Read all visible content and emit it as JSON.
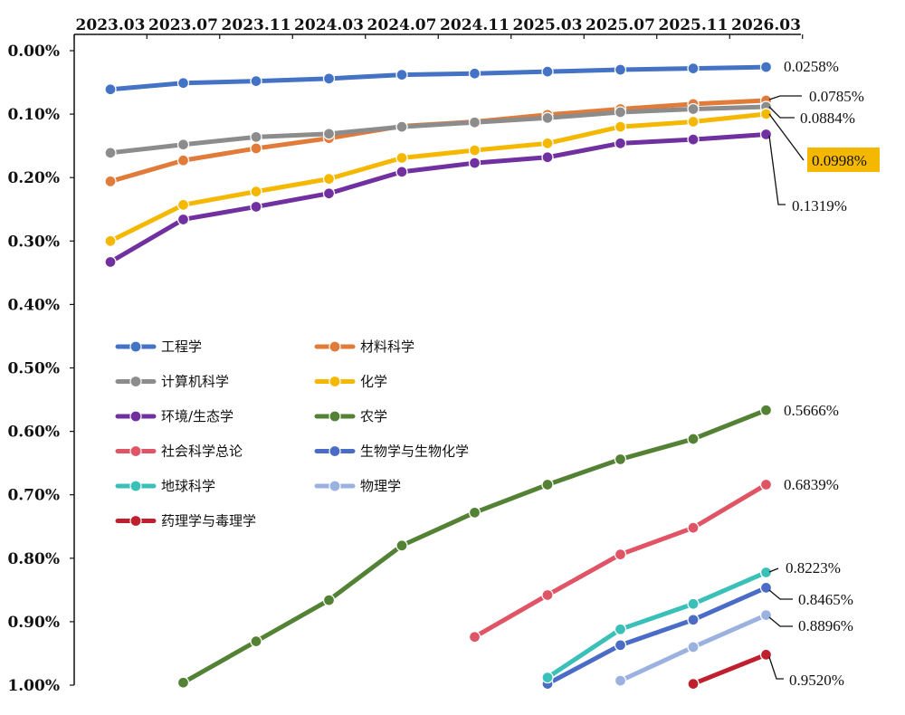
{
  "chart_data": {
    "type": "line",
    "x_categories": [
      "2023.03",
      "2023.07",
      "2023.11",
      "2024.03",
      "2024.07",
      "2024.11",
      "2025.03",
      "2025.07",
      "2025.11",
      "2026.03"
    ],
    "y_axis": {
      "inverted": true,
      "ylim": [
        0,
        1.0
      ],
      "ticks": [
        "0.00%",
        "0.10%",
        "0.20%",
        "0.30%",
        "0.40%",
        "0.50%",
        "0.60%",
        "0.70%",
        "0.80%",
        "0.90%",
        "1.00%"
      ],
      "unit": "%"
    },
    "grid": false,
    "legend_placement": "middle-left",
    "series": [
      {
        "name": "工程学",
        "color": "#4472C4",
        "values": [
          0.061,
          0.051,
          0.048,
          0.044,
          0.038,
          0.036,
          0.033,
          0.03,
          0.028,
          0.0258
        ],
        "end_label": "0.0258%"
      },
      {
        "name": "材料科学",
        "color": "#E07B39",
        "values": [
          0.206,
          0.173,
          0.154,
          0.138,
          0.119,
          0.112,
          0.101,
          0.092,
          0.084,
          0.0785
        ],
        "end_label": "0.0785%"
      },
      {
        "name": "计算机科学",
        "color": "#8C8C8C",
        "values": [
          0.161,
          0.148,
          0.136,
          0.131,
          0.12,
          0.113,
          0.106,
          0.097,
          0.092,
          0.0884
        ],
        "end_label": "0.0884%"
      },
      {
        "name": "化学",
        "color": "#F5B800",
        "values": [
          0.3,
          0.243,
          0.222,
          0.202,
          0.169,
          0.157,
          0.146,
          0.12,
          0.112,
          0.0998
        ],
        "end_label": "0.0998%",
        "end_label_highlight": "#F5B800"
      },
      {
        "name": "环境/生态学",
        "color": "#7030A0",
        "values": [
          0.333,
          0.266,
          0.246,
          0.225,
          0.191,
          0.177,
          0.168,
          0.146,
          0.14,
          0.1319
        ],
        "end_label": "0.1319%"
      },
      {
        "name": "农学",
        "color": "#548235",
        "values": [
          null,
          0.996,
          0.931,
          0.866,
          0.78,
          0.728,
          0.684,
          0.644,
          0.612,
          0.5666
        ],
        "end_label": "0.5666%"
      },
      {
        "name": "社会科学总论",
        "color": "#E05566",
        "values": [
          null,
          null,
          null,
          null,
          null,
          0.924,
          0.858,
          0.794,
          0.752,
          0.6839
        ],
        "end_label": "0.6839%"
      },
      {
        "name": "生物学与生物化学",
        "color": "#4A6CC6",
        "values": [
          null,
          null,
          null,
          null,
          null,
          null,
          0.998,
          0.937,
          0.897,
          0.8465
        ],
        "end_label": "0.8465%"
      },
      {
        "name": "地球科学",
        "color": "#3BBFB9",
        "values": [
          null,
          null,
          null,
          null,
          null,
          null,
          0.988,
          0.912,
          0.872,
          0.8223
        ],
        "end_label": "0.8223%"
      },
      {
        "name": "物理学",
        "color": "#9BB2E0",
        "values": [
          null,
          null,
          null,
          null,
          null,
          null,
          null,
          0.993,
          0.94,
          0.8896
        ],
        "end_label": "0.8896%"
      },
      {
        "name": "药理学与毒理学",
        "color": "#C0202E",
        "values": [
          null,
          null,
          null,
          null,
          null,
          null,
          null,
          null,
          0.998,
          0.952
        ],
        "end_label": "0.9520%"
      }
    ]
  }
}
